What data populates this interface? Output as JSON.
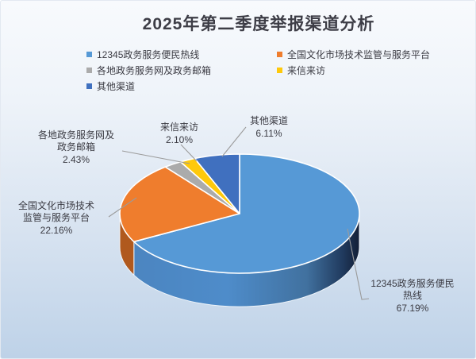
{
  "title": "2025年第二季度举报渠道分析",
  "colors": {
    "background_top": "#f8fafd",
    "background_bottom": "#bed2e8",
    "title_text": "#3d3d46",
    "label_text": "#3a3a42",
    "leader_line": "#9b9b9b",
    "slice_border": "#ffffff"
  },
  "chart_data": {
    "type": "pie",
    "style": "3d",
    "title": "2025年第二季度举报渠道分析",
    "unit": "%",
    "legend_position": "top",
    "start_angle_deg": 0,
    "direction": "clockwise",
    "slices": [
      {
        "name": "12345政务服务便民热线",
        "value": 67.19,
        "pct": "67.19%",
        "color": "#5699d6",
        "side": "gradient",
        "callout": [
          "12345政务服务便民",
          "热线",
          "67.19%"
        ]
      },
      {
        "name": "全国文化市场技术监管与服务平台",
        "value": 22.16,
        "pct": "22.16%",
        "color": "#ef7d2d",
        "side": "#b0591e",
        "callout": [
          "全国文化市场技术",
          "监管与服务平台",
          "22.16%"
        ]
      },
      {
        "name": "各地政务服务网及政务邮箱",
        "value": 2.43,
        "pct": "2.43%",
        "color": "#ababab",
        "side": "#8a8a8a",
        "callout": [
          "各地政务服务网及",
          "政务邮箱",
          "2.43%"
        ]
      },
      {
        "name": "来信来访",
        "value": 2.1,
        "pct": "2.10%",
        "color": "#fec90b",
        "side": "#c79a00",
        "callout": [
          "来信来访",
          "2.10%"
        ]
      },
      {
        "name": "其他渠道",
        "value": 6.11,
        "pct": "6.11%",
        "color": "#4070bf",
        "side": "#2c4f8c",
        "callout": [
          "其他渠道",
          "6.11%"
        ]
      }
    ]
  }
}
